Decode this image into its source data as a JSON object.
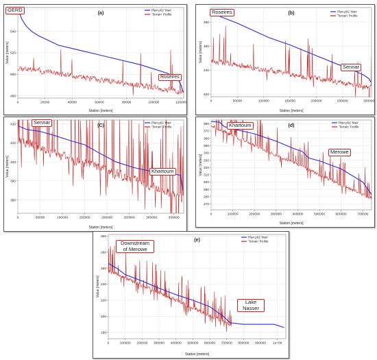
{
  "theme": {
    "plan_color": "#2b2bdc",
    "terrain_color": "#c62020",
    "callout_border": "#d42020"
  },
  "legend": {
    "plan": "Plan p02 'Max'",
    "terrain": "'Terrain' Profile"
  },
  "chart_data": [
    {
      "id": "a",
      "type": "line",
      "title": "(a)",
      "xlabel": "Station [meters]",
      "ylabel": "Value [meters]",
      "xlim": [
        0,
        122000
      ],
      "ylim": [
        478,
        562
      ],
      "xticks": [
        0,
        20000,
        40000,
        60000,
        80000,
        100000,
        120000
      ],
      "xtick_labels": [
        "0",
        "20000",
        "40000",
        "60000",
        "80000",
        "100000",
        "120000"
      ],
      "yticks": [
        480,
        500,
        520,
        540,
        560
      ],
      "ytick_labels": [
        "480",
        "500",
        "520",
        "540",
        "560"
      ],
      "callouts": [
        "GERD",
        "Roseires"
      ],
      "series": [
        {
          "name": "Plan p02 'Max'",
          "x": [
            0,
            1500,
            3000,
            6000,
            10000,
            15000,
            20000,
            30000,
            40000,
            50000,
            60000,
            70000,
            80000,
            90000,
            100000,
            110000,
            115000,
            118000,
            120000,
            121500
          ],
          "y": [
            561,
            556,
            551,
            545,
            540,
            536,
            533,
            527,
            524,
            521,
            518,
            515,
            512,
            509,
            505,
            501,
            498,
            495,
            490,
            484
          ]
        },
        {
          "name": "'Terrain' Profile",
          "x": [
            0,
            122000
          ],
          "y": [
            505,
            482
          ],
          "noise": 7,
          "spikes": 8,
          "seed": 11
        }
      ]
    },
    {
      "id": "b",
      "type": "line",
      "title": "(b)",
      "xlabel": "Station [meters]",
      "ylabel": "Value [meters]",
      "xlim": [
        0,
        305000
      ],
      "ylim": [
        418,
        492
      ],
      "xticks": [
        0,
        50000,
        100000,
        150000,
        200000,
        250000,
        300000
      ],
      "xtick_labels": [
        "0",
        "50000",
        "100000",
        "150000",
        "200000",
        "250000",
        "300000"
      ],
      "yticks": [
        420,
        440,
        460,
        480
      ],
      "ytick_labels": [
        "420",
        "440",
        "460",
        "480"
      ],
      "callouts": [
        "Roseires",
        "Sennar"
      ],
      "series": [
        {
          "name": "Plan p02 'Max'",
          "x": [
            0,
            5000,
            20000,
            50000,
            80000,
            110000,
            150000,
            200000,
            240000,
            270000,
            290000,
            300000,
            304000
          ],
          "y": [
            490,
            487,
            484,
            479,
            473,
            467,
            461,
            452,
            445,
            440,
            436,
            433,
            430
          ]
        },
        {
          "name": "'Terrain' Profile",
          "x": [
            0,
            305000
          ],
          "y": [
            447,
            424
          ],
          "noise": 6,
          "spikes": 18,
          "seed": 23
        }
      ]
    },
    {
      "id": "c",
      "type": "line",
      "title": "(C)",
      "xlabel": "Station [meters]",
      "ylabel": "Value [meters]",
      "xlim": [
        0,
        372000
      ],
      "ylim": [
        373,
        422
      ],
      "xticks": [
        0,
        50000,
        100000,
        150000,
        200000,
        250000,
        300000,
        350000
      ],
      "xtick_labels": [
        "0",
        "50000",
        "100000",
        "150000",
        "200000",
        "250000",
        "300000",
        "350000"
      ],
      "yticks": [
        380,
        390,
        400,
        410,
        420
      ],
      "ytick_labels": [
        "380",
        "390",
        "400",
        "410",
        "420"
      ],
      "callouts": [
        "Sennar",
        "Khartoum"
      ],
      "series": [
        {
          "name": "Plan p02 'Max'",
          "x": [
            0,
            20000,
            50000,
            80000,
            120000,
            150000,
            180000,
            220000,
            260000,
            300000,
            340000,
            365000,
            370000
          ],
          "y": [
            419,
            417,
            416,
            414,
            411,
            409,
            405,
            400,
            397,
            395,
            394,
            393,
            385
          ]
        },
        {
          "name": "'Terrain' Profile",
          "x": [
            0,
            372000
          ],
          "y": [
            410,
            380
          ],
          "noise": 7,
          "spikes": 60,
          "seed": 37
        }
      ]
    },
    {
      "id": "d",
      "type": "line",
      "title": "(d)",
      "xlabel": "Station [meters]",
      "ylabel": "Value [meters]",
      "xlim": [
        0,
        740000
      ],
      "ylim": [
        262,
        385
      ],
      "xticks": [
        0,
        100000,
        200000,
        300000,
        400000,
        500000,
        600000,
        700000
      ],
      "xtick_labels": [
        "0",
        "100000",
        "200000",
        "300000",
        "400000",
        "500000",
        "600000",
        "700000"
      ],
      "yticks": [
        270,
        280,
        290,
        300,
        310,
        320,
        330,
        340,
        350,
        360,
        370,
        380
      ],
      "ytick_labels": [
        "270",
        "280",
        "290",
        "300",
        "310",
        "320",
        "330",
        "340",
        "350",
        "360",
        "370",
        "380"
      ],
      "callouts": [
        "Khartoum",
        "Merowe"
      ],
      "series": [
        {
          "name": "Plan p02 'Max'",
          "x": [
            0,
            40000,
            60000,
            100000,
            200000,
            300000,
            380000,
            420000,
            450000,
            500000,
            600000,
            700000,
            740000
          ],
          "y": [
            383,
            382,
            376,
            373,
            366,
            356,
            346,
            342,
            333,
            329,
            318,
            300,
            283
          ]
        },
        {
          "name": "'Terrain' Profile",
          "x": [
            0,
            740000
          ],
          "y": [
            376,
            276
          ],
          "noise": 7,
          "spikes": 55,
          "seed": 51
        }
      ]
    },
    {
      "id": "e",
      "type": "line",
      "title": "(e)",
      "xlabel": "Station [meters]",
      "ylabel": "Value [meters]",
      "xlim": [
        0,
        1050000
      ],
      "ylim": [
        172,
        302
      ],
      "xticks": [
        0,
        100000,
        200000,
        300000,
        400000,
        500000,
        600000,
        700000,
        800000,
        900000,
        1000000
      ],
      "xtick_labels": [
        "0",
        "100000",
        "200000",
        "300000",
        "400000",
        "500000",
        "600000",
        "700000",
        "800000",
        "900000",
        "1e+06"
      ],
      "yticks": [
        180,
        200,
        220,
        240,
        260,
        280,
        300
      ],
      "ytick_labels": [
        "180",
        "200",
        "220",
        "240",
        "260",
        "280",
        "300"
      ],
      "callouts": [
        "Downstream of Merowe",
        "Lake Nasser"
      ],
      "series": [
        {
          "name": "Plan p02 'Max'",
          "x": [
            0,
            50000,
            100000,
            200000,
            300000,
            400000,
            500000,
            600000,
            680000,
            720000,
            800000,
            900000,
            980000,
            1040000
          ],
          "y": [
            266,
            260,
            252,
            244,
            235,
            227,
            220,
            212,
            200,
            192,
            190,
            190,
            190,
            186
          ]
        },
        {
          "name": "'Terrain' Profile",
          "x": [
            0,
            730000
          ],
          "y": [
            256,
            188
          ],
          "noise": 6,
          "spikes": 50,
          "seed": 67
        }
      ]
    }
  ]
}
